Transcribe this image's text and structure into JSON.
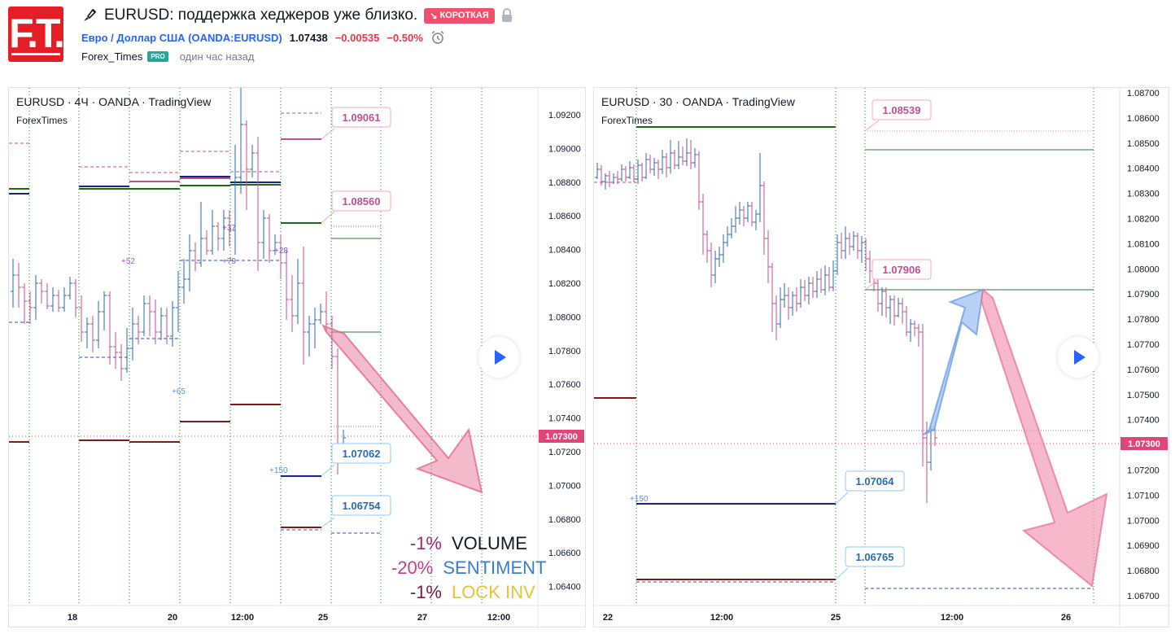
{
  "header": {
    "logo_text": "F.T.",
    "title": "EURUSD: поддержка хеджеров уже близко.",
    "badge": "КОРОТКАЯ",
    "symbol_link": "Евро / Доллар США (OANDA:EURUSD)",
    "price": "1.07438",
    "change": "−0.00535",
    "change_pct": "−0.50%",
    "author": "Forex_Times",
    "author_badge": "PRO",
    "time_ago": "один час назад",
    "icons": [
      "pen-brush-icon",
      "lock-icon",
      "alarm-clock-icon"
    ]
  },
  "colors": {
    "up": "#2a6bb0",
    "down": "#c0508e",
    "pink_arrow": "#f08aaa",
    "blue_arrow": "#9bbcf2",
    "dark_red": "#7a1a1a",
    "green": "#1b6b1b",
    "navy": "#1a237e",
    "price_tag": "#e0457a"
  },
  "chart1": {
    "title": "EURUSD · 4Ч · OANDA · TradingView",
    "subtitle": "ForexTimes",
    "price_tag": "1.07300",
    "y_ticks": [
      "1.09200",
      "1.09000",
      "1.08800",
      "1.08600",
      "1.08400",
      "1.08200",
      "1.08000",
      "1.07800",
      "1.07600",
      "1.07400",
      "1.07200",
      "1.07000",
      "1.06800",
      "1.06600",
      "1.06400"
    ],
    "x_ticks": [
      "18",
      "20",
      "12:00",
      "25",
      "27",
      "12:00"
    ],
    "callouts": [
      "1.09061",
      "1.08560",
      "1.07062",
      "1.06754"
    ],
    "small_labels": [
      "+52",
      "+37",
      "+79",
      "+28",
      "+65",
      "+150"
    ],
    "legend": [
      {
        "pct": "-1%",
        "label": "VOLUME"
      },
      {
        "pct": "-20%",
        "label": "SENTIMENT"
      },
      {
        "pct": "-1%",
        "label": "LOCK INV"
      }
    ]
  },
  "chart2": {
    "title": "EURUSD · 30 · OANDA · TradingView",
    "subtitle": "ForexTimes",
    "price_tag": "1.07300",
    "y_ticks": [
      "1.08700",
      "1.08600",
      "1.08500",
      "1.08400",
      "1.08300",
      "1.08200",
      "1.08100",
      "1.08000",
      "1.07900",
      "1.07800",
      "1.07700",
      "1.07600",
      "1.07500",
      "1.07400",
      "1.07300",
      "1.07200",
      "1.07100",
      "1.07000",
      "1.06900",
      "1.06800",
      "1.06700"
    ],
    "x_ticks": [
      "22",
      "12:00",
      "25",
      "12:00",
      "26"
    ],
    "callouts": [
      "1.08539",
      "1.07906",
      "1.07064",
      "1.06765"
    ],
    "small_labels": [
      "+150"
    ]
  }
}
